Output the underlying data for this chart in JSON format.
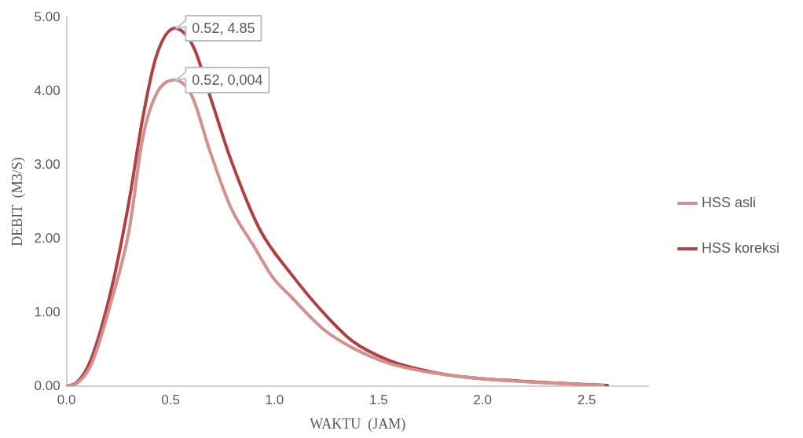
{
  "chart_data": {
    "type": "line",
    "xlabel": "WAKTU  (JAM)",
    "ylabel": "DEBIT  (M3/S)",
    "xlim": [
      0,
      2.8
    ],
    "xticks": [
      {
        "value": 0,
        "label": "0.0"
      },
      {
        "value": 0.5,
        "label": "0.5"
      },
      {
        "value": 1,
        "label": "1.0"
      },
      {
        "value": 1.5,
        "label": "1.5"
      },
      {
        "value": 2,
        "label": "2.0"
      },
      {
        "value": 2.5,
        "label": "2.5"
      }
    ],
    "ylim": [
      0,
      5
    ],
    "yticks": [
      {
        "value": 0,
        "label": "0.00"
      },
      {
        "value": 1,
        "label": "1.00"
      },
      {
        "value": 2,
        "label": "2.00"
      },
      {
        "value": 3,
        "label": "3.00"
      },
      {
        "value": 4,
        "label": "4.00"
      },
      {
        "value": 5,
        "label": "5.00"
      }
    ],
    "grid": false,
    "legend": "right",
    "marker": "none",
    "line_style": "solid",
    "series": [
      {
        "name": "HSS asli",
        "color": "#d48f8f",
        "x": [
          0,
          0.05,
          0.12,
          0.22,
          0.3,
          0.366,
          0.43,
          0.52,
          0.6,
          0.69,
          0.79,
          0.9,
          0.99,
          1.08,
          1.24,
          1.375,
          1.55,
          1.76,
          2,
          2.2,
          2.58
        ],
        "values": [
          0,
          0.04,
          0.3,
          1.2,
          2.1,
          3.36,
          3.95,
          4.15,
          3.95,
          3.18,
          2.42,
          1.9,
          1.48,
          1.21,
          0.76,
          0.52,
          0.31,
          0.18,
          0.1,
          0.06,
          0.01
        ]
      },
      {
        "name": "HSS koreksi",
        "color": "#b04141",
        "x": [
          0,
          0.05,
          0.116,
          0.22,
          0.3,
          0.366,
          0.43,
          0.52,
          0.61,
          0.69,
          0.79,
          0.93,
          1.08,
          1.24,
          1.375,
          1.55,
          1.76,
          1.93,
          2.18,
          2.6
        ],
        "values": [
          0,
          0.05,
          0.35,
          1.37,
          2.5,
          3.63,
          4.46,
          4.85,
          4.6,
          3.93,
          3.07,
          2.12,
          1.52,
          0.98,
          0.61,
          0.35,
          0.19,
          0.12,
          0.07,
          0.01
        ]
      }
    ],
    "annotations": [
      {
        "text": "0.52, 4.85",
        "x": 0.52,
        "y": 4.85
      },
      {
        "text": "0.52, 0,004",
        "x": 0.52,
        "y": 4.15
      }
    ]
  }
}
